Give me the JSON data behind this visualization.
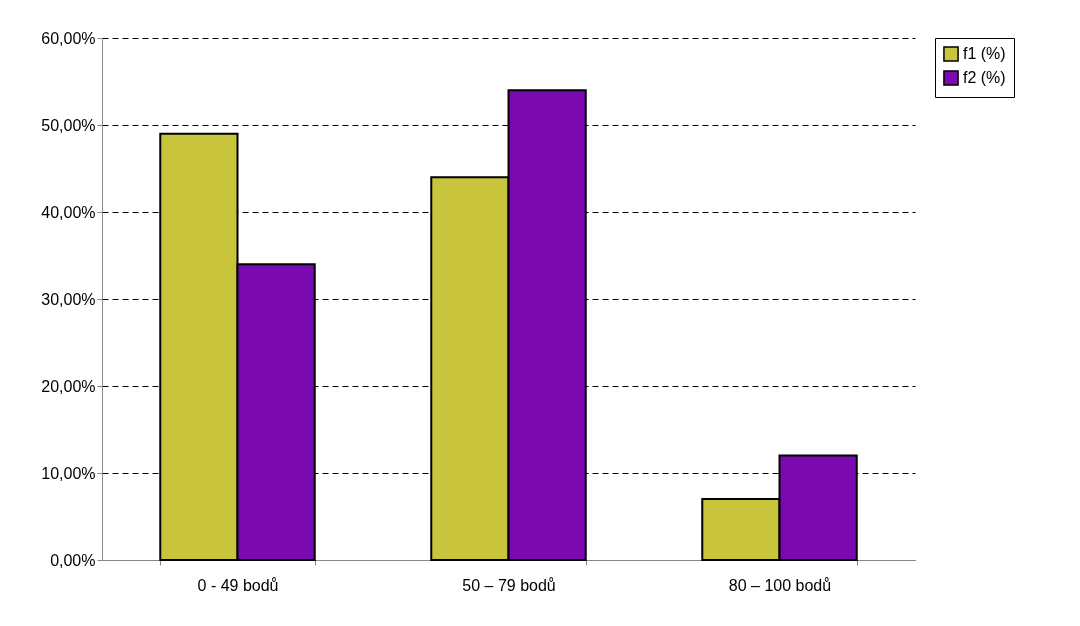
{
  "chart_data": {
    "type": "bar",
    "categories": [
      "0 - 49 bodů",
      "50 – 79 bodů",
      "80 – 100 bodů"
    ],
    "series": [
      {
        "name": "f1 (%)",
        "color": "#c8c43c",
        "values": [
          49,
          44,
          7
        ]
      },
      {
        "name": "f2 (%)",
        "color": "#7a0ab0",
        "values": [
          34,
          54,
          12
        ]
      }
    ],
    "ylim": [
      0,
      60
    ],
    "yticks": [
      {
        "value": 0,
        "label": "0,00%"
      },
      {
        "value": 10,
        "label": "10,00%"
      },
      {
        "value": 20,
        "label": "20,00%"
      },
      {
        "value": 30,
        "label": "30,00%"
      },
      {
        "value": 40,
        "label": "40,00%"
      },
      {
        "value": 50,
        "label": "50,00%"
      },
      {
        "value": 60,
        "label": "60,00%"
      }
    ],
    "grid": "y",
    "legend": "right"
  }
}
